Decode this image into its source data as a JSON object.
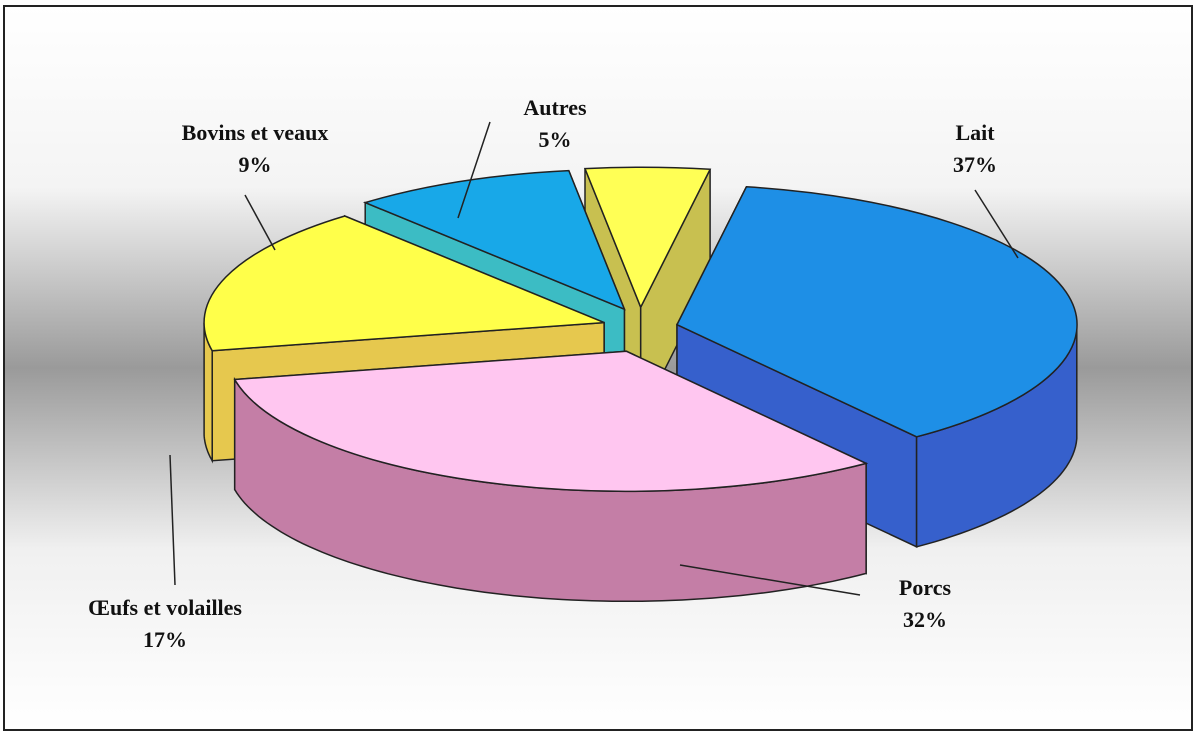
{
  "chart_data": {
    "type": "pie3d",
    "categories": [
      "Lait",
      "Porcs",
      "Œufs et volailles",
      "Bovins et veaux",
      "Autres"
    ],
    "values": [
      37,
      32,
      17,
      9,
      5
    ],
    "value_labels": [
      "37%",
      "32%",
      "17%",
      "9%",
      "5%"
    ],
    "colors": [
      "#1e8fe6",
      "#ffc6f0",
      "#ffff4a",
      "#18a8e8",
      "#ffff55"
    ],
    "side_colors": [
      "#3660cc",
      "#c47ea6",
      "#e6c84e",
      "#3cbcc4",
      "#c8c050"
    ]
  }
}
